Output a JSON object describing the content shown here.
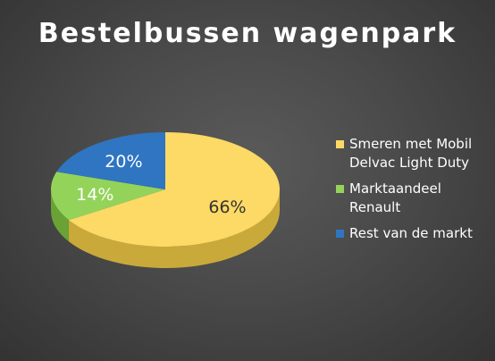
{
  "chart_data": {
    "type": "pie",
    "title": "Bestelbussen wagenpark",
    "three_d": true,
    "legend_position": "right",
    "slices": [
      {
        "label": "Smeren met Mobil Delvac Light Duty",
        "value": 66,
        "value_label": "66%",
        "color": "#FDD965",
        "side_color": "#C9A93A"
      },
      {
        "label": "Marktaandeel Renault",
        "value": 14,
        "value_label": "14%",
        "color": "#94D35A",
        "side_color": "#6AA235"
      },
      {
        "label": "Rest van de markt",
        "value": 20,
        "value_label": "20%",
        "color": "#2F75C1",
        "side_color": "#1D4F8A"
      }
    ]
  }
}
